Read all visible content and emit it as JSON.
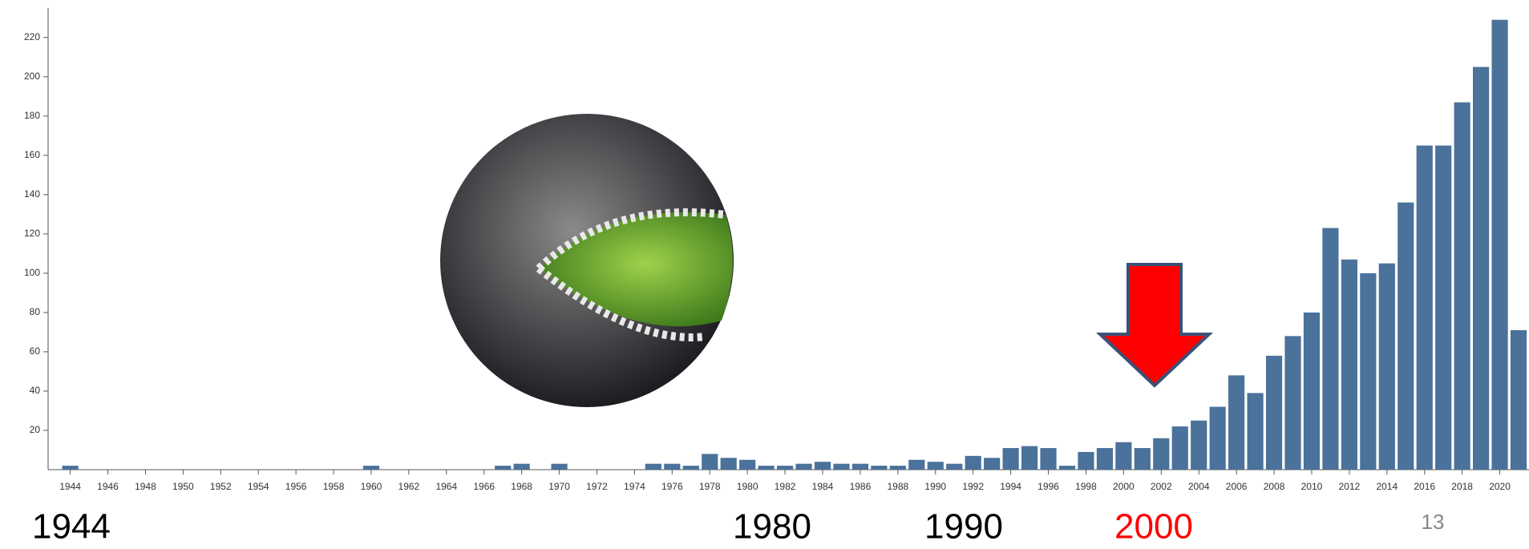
{
  "chart_data": {
    "type": "bar",
    "categories": [
      "1944",
      null,
      "1946",
      null,
      "1948",
      null,
      "1950",
      null,
      "1952",
      null,
      "1954",
      null,
      "1956",
      null,
      "1958",
      null,
      "1960",
      null,
      "1962",
      null,
      "1964",
      null,
      "1966",
      null,
      "1968",
      null,
      "1970",
      null,
      "1972",
      null,
      "1974",
      null,
      "1976",
      null,
      "1978",
      null,
      "1980",
      null,
      "1982",
      null,
      "1984",
      null,
      "1986",
      null,
      "1988",
      null,
      "1990",
      null,
      "1992",
      null,
      "1994",
      null,
      "1996",
      null,
      "1998",
      null,
      "2000",
      null,
      "2002",
      null,
      "2004",
      null,
      "2006",
      null,
      "2008",
      null,
      "2010",
      null,
      "2012",
      null,
      "2014",
      null,
      "2016",
      null,
      "2018",
      null,
      "2020",
      null
    ],
    "values": [
      2,
      0,
      0,
      0,
      0,
      0,
      0,
      0,
      0,
      0,
      0,
      0,
      0,
      0,
      0,
      0,
      2,
      0,
      0,
      0,
      0,
      0,
      0,
      2,
      3,
      0,
      3,
      0,
      0,
      0,
      0,
      3,
      3,
      2,
      8,
      6,
      5,
      2,
      2,
      3,
      4,
      3,
      3,
      2,
      2,
      5,
      4,
      3,
      7,
      6,
      11,
      12,
      11,
      2,
      9,
      11,
      14,
      11,
      16,
      22,
      25,
      32,
      48,
      39,
      58,
      68,
      80,
      123,
      107,
      100,
      105,
      136,
      165,
      165,
      187,
      205,
      229,
      71
    ],
    "color": "#4a729a",
    "ylim": [
      0,
      235
    ],
    "yticks": [
      20,
      40,
      60,
      80,
      100,
      120,
      140,
      160,
      180,
      200,
      220
    ],
    "annotations": [
      {
        "text": "1944",
        "color": "#000000"
      },
      {
        "text": "1980",
        "color": "#000000"
      },
      {
        "text": "1990",
        "color": "#000000"
      },
      {
        "text": "2000",
        "color": "#ff0000"
      }
    ],
    "page_number": "13"
  }
}
